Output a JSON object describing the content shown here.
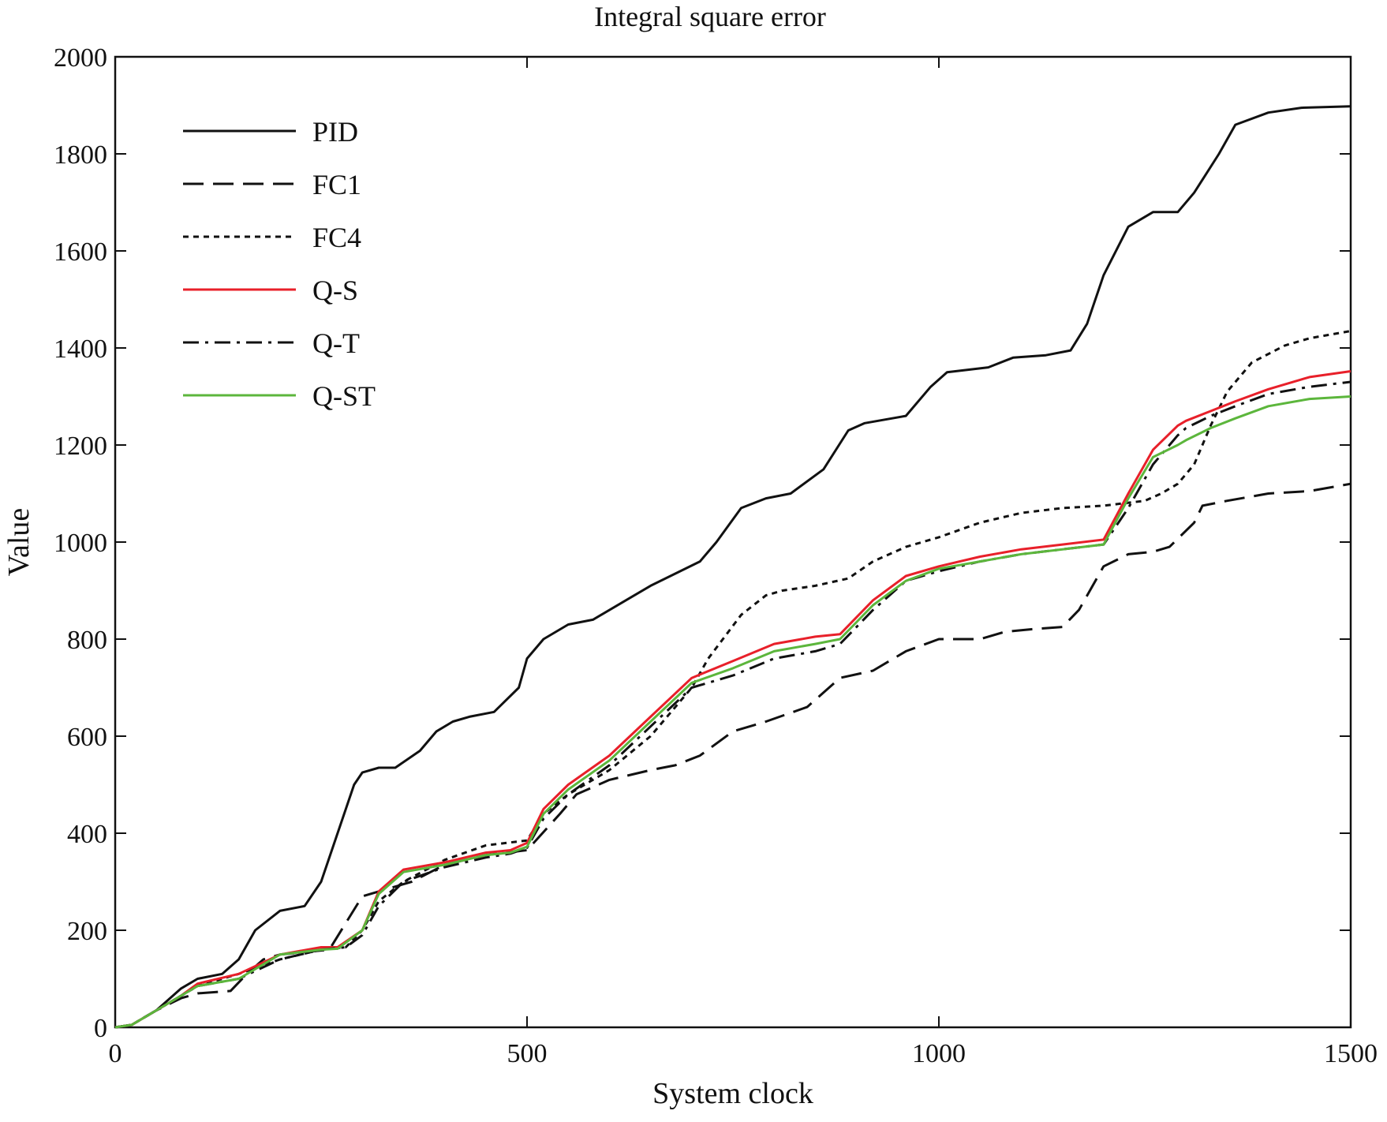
{
  "chart_data": {
    "type": "line",
    "title": "Integral square error",
    "xlabel": "System clock",
    "ylabel": "Value",
    "xlim": [
      0,
      1500
    ],
    "ylim": [
      0,
      2000
    ],
    "xticks": [
      0,
      500,
      1000,
      1500
    ],
    "yticks": [
      0,
      200,
      400,
      600,
      800,
      1000,
      1200,
      1400,
      1600,
      1800,
      2000
    ],
    "grid": false,
    "legend_position": "top-left",
    "series": [
      {
        "name": "PID",
        "color": "#111111",
        "dash": "solid",
        "x": [
          0,
          20,
          50,
          80,
          100,
          130,
          150,
          170,
          200,
          230,
          250,
          270,
          290,
          300,
          320,
          340,
          370,
          390,
          410,
          430,
          460,
          490,
          500,
          520,
          550,
          580,
          620,
          650,
          680,
          710,
          730,
          760,
          790,
          820,
          860,
          890,
          910,
          960,
          990,
          1010,
          1060,
          1090,
          1130,
          1160,
          1180,
          1200,
          1230,
          1260,
          1290,
          1310,
          1340,
          1360,
          1400,
          1440,
          1500
        ],
        "y": [
          0,
          5,
          35,
          80,
          100,
          110,
          140,
          200,
          240,
          250,
          300,
          400,
          500,
          525,
          535,
          535,
          570,
          610,
          630,
          640,
          650,
          700,
          760,
          800,
          830,
          840,
          880,
          910,
          935,
          960,
          1000,
          1070,
          1090,
          1100,
          1150,
          1230,
          1245,
          1260,
          1320,
          1350,
          1360,
          1380,
          1385,
          1395,
          1450,
          1550,
          1650,
          1680,
          1680,
          1720,
          1800,
          1860,
          1885,
          1895,
          1898
        ]
      },
      {
        "name": "FC1",
        "color": "#111111",
        "dash": "long-dash",
        "x": [
          0,
          20,
          50,
          80,
          100,
          140,
          160,
          180,
          200,
          260,
          300,
          360,
          400,
          450,
          500,
          540,
          560,
          600,
          650,
          680,
          710,
          750,
          790,
          840,
          880,
          920,
          960,
          1000,
          1050,
          1080,
          1110,
          1150,
          1170,
          1200,
          1230,
          1260,
          1280,
          1310,
          1320,
          1350,
          1400,
          1450,
          1500
        ],
        "y": [
          0,
          5,
          35,
          60,
          70,
          75,
          110,
          140,
          150,
          160,
          270,
          300,
          335,
          355,
          365,
          440,
          480,
          510,
          530,
          540,
          560,
          610,
          630,
          660,
          720,
          735,
          775,
          800,
          800,
          815,
          820,
          825,
          860,
          950,
          975,
          980,
          990,
          1040,
          1075,
          1085,
          1100,
          1105,
          1120
        ]
      },
      {
        "name": "FC4",
        "color": "#111111",
        "dash": "short-dash",
        "x": [
          0,
          20,
          50,
          80,
          100,
          150,
          200,
          250,
          280,
          300,
          320,
          350,
          400,
          450,
          500,
          520,
          550,
          600,
          650,
          700,
          720,
          760,
          790,
          810,
          850,
          890,
          920,
          960,
          1000,
          1050,
          1100,
          1150,
          1200,
          1250,
          1270,
          1290,
          1310,
          1330,
          1350,
          1380,
          1420,
          1450,
          1500
        ],
        "y": [
          0,
          5,
          35,
          65,
          85,
          110,
          140,
          160,
          165,
          200,
          260,
          300,
          345,
          375,
          385,
          440,
          480,
          530,
          600,
          700,
          760,
          850,
          890,
          900,
          910,
          925,
          960,
          990,
          1010,
          1040,
          1060,
          1070,
          1075,
          1085,
          1100,
          1120,
          1160,
          1240,
          1310,
          1370,
          1405,
          1420,
          1435
        ]
      },
      {
        "name": "Q-S",
        "color": "#e8202a",
        "dash": "solid",
        "x": [
          0,
          20,
          50,
          80,
          100,
          150,
          200,
          250,
          270,
          300,
          320,
          350,
          400,
          450,
          480,
          500,
          520,
          550,
          600,
          650,
          700,
          750,
          800,
          850,
          880,
          920,
          960,
          1000,
          1050,
          1100,
          1150,
          1200,
          1230,
          1260,
          1290,
          1300,
          1330,
          1360,
          1400,
          1450,
          1500
        ],
        "y": [
          0,
          5,
          35,
          65,
          90,
          110,
          150,
          165,
          165,
          200,
          280,
          325,
          340,
          360,
          365,
          380,
          450,
          500,
          560,
          640,
          720,
          755,
          790,
          805,
          810,
          880,
          930,
          950,
          970,
          985,
          995,
          1005,
          1100,
          1190,
          1240,
          1250,
          1270,
          1290,
          1315,
          1340,
          1352
        ]
      },
      {
        "name": "Q-T",
        "color": "#111111",
        "dash": "dash-dot",
        "x": [
          0,
          20,
          50,
          80,
          100,
          150,
          200,
          250,
          280,
          300,
          320,
          350,
          400,
          450,
          480,
          500,
          520,
          550,
          600,
          650,
          700,
          750,
          800,
          850,
          880,
          920,
          960,
          1000,
          1050,
          1100,
          1150,
          1200,
          1230,
          1260,
          1290,
          1300,
          1330,
          1360,
          1400,
          1450,
          1500
        ],
        "y": [
          0,
          5,
          35,
          65,
          85,
          100,
          140,
          160,
          165,
          190,
          250,
          300,
          330,
          350,
          358,
          370,
          430,
          480,
          540,
          620,
          700,
          725,
          760,
          775,
          790,
          860,
          920,
          940,
          960,
          975,
          985,
          995,
          1070,
          1160,
          1220,
          1235,
          1260,
          1280,
          1305,
          1320,
          1330
        ]
      },
      {
        "name": "Q-ST",
        "color": "#5cb63c",
        "dash": "solid",
        "x": [
          0,
          20,
          50,
          80,
          100,
          150,
          200,
          250,
          270,
          300,
          320,
          350,
          400,
          450,
          480,
          500,
          520,
          550,
          600,
          650,
          700,
          750,
          800,
          850,
          880,
          920,
          960,
          1000,
          1050,
          1100,
          1150,
          1200,
          1230,
          1260,
          1290,
          1300,
          1330,
          1360,
          1400,
          1450,
          1500
        ],
        "y": [
          0,
          5,
          35,
          65,
          85,
          100,
          150,
          160,
          162,
          200,
          275,
          320,
          335,
          355,
          360,
          372,
          440,
          490,
          550,
          630,
          710,
          740,
          775,
          790,
          800,
          870,
          920,
          945,
          960,
          975,
          985,
          995,
          1090,
          1175,
          1200,
          1210,
          1235,
          1255,
          1280,
          1295,
          1300
        ]
      }
    ]
  }
}
